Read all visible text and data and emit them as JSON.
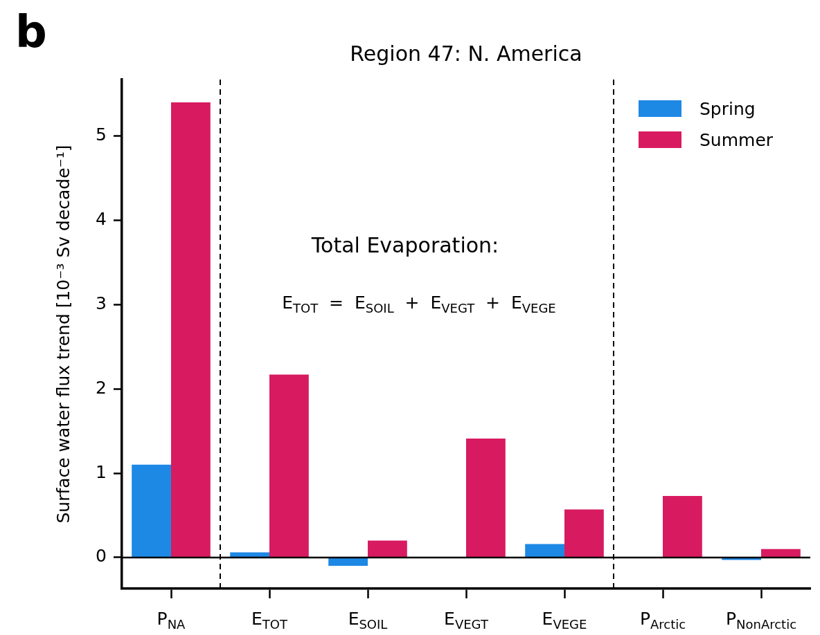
{
  "chart_data": {
    "type": "bar",
    "title": "Region 47: N. America",
    "ylabel": "Surface water flux trend [10⁻³ Sv decade⁻¹]",
    "categories": [
      "P$_{NA}$",
      "E$_{TOT}$",
      "E$_{SOIL}$",
      "E$_{VEGT}$",
      "E$_{VEGE}$",
      "P$_{Arctic}$",
      "P$_{NonArctic}$"
    ],
    "series": [
      {
        "name": "Spring",
        "color": "#1e88e5",
        "values": [
          1.1,
          0.06,
          -0.1,
          0,
          0.16,
          0,
          -0.03
        ]
      },
      {
        "name": "Summer",
        "color": "#d81b60",
        "values": [
          5.4,
          2.17,
          0.2,
          1.41,
          0.57,
          0.73,
          0.1
        ]
      }
    ],
    "ylim": [
      -0.37,
      5.67
    ],
    "yticks": [
      0,
      1,
      2,
      3,
      4,
      5
    ],
    "grid": false,
    "legend": "top right",
    "ref_lines": [
      {
        "axis": "y",
        "value": 0,
        "line_style": "solid",
        "color": "#000000"
      }
    ],
    "annotations": [
      "b",
      "Total Evaporation:",
      "E$_{TOT}$  =  E$_{SOIL}$  +  E$_{VEGT}$  +  E$_{VEGE}$"
    ]
  }
}
